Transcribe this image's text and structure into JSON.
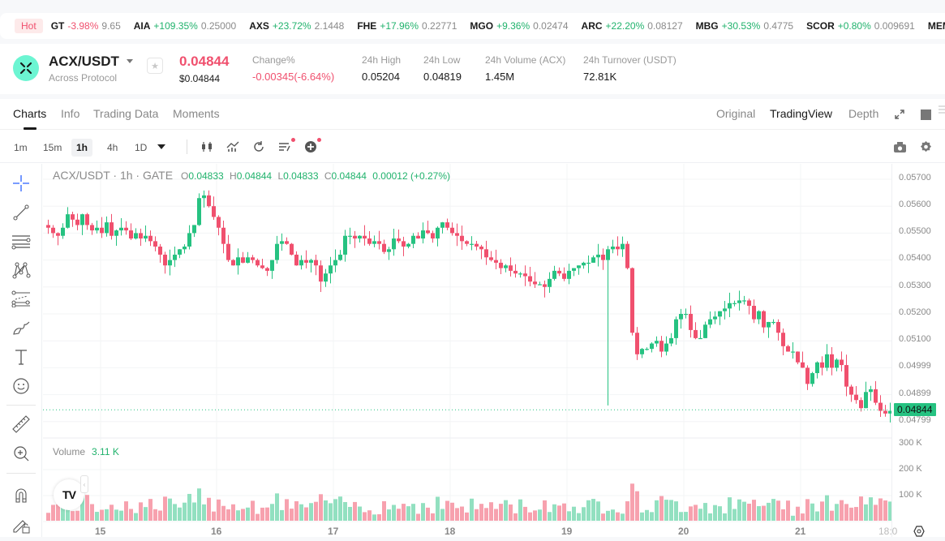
{
  "ticker": {
    "hot_label": "Hot",
    "items": [
      {
        "symbol": "GT",
        "change": "-3.98%",
        "dir": "dn",
        "price": "9.65"
      },
      {
        "symbol": "AIA",
        "change": "+109.35%",
        "dir": "up",
        "price": "0.25000"
      },
      {
        "symbol": "AXS",
        "change": "+23.72%",
        "dir": "up",
        "price": "2.1448"
      },
      {
        "symbol": "FHE",
        "change": "+17.96%",
        "dir": "up",
        "price": "0.22771"
      },
      {
        "symbol": "MGO",
        "change": "+9.36%",
        "dir": "up",
        "price": "0.02474"
      },
      {
        "symbol": "ARC",
        "change": "+22.20%",
        "dir": "up",
        "price": "0.08127"
      },
      {
        "symbol": "MBG",
        "change": "+30.53%",
        "dir": "up",
        "price": "0.4775"
      },
      {
        "symbol": "SCOR",
        "change": "+0.80%",
        "dir": "up",
        "price": "0.009691"
      },
      {
        "symbol": "MEME",
        "change": "",
        "dir": "up",
        "price": ""
      }
    ]
  },
  "header": {
    "pair": "ACX/USDT",
    "name": "Across Protocol",
    "price": "0.04844",
    "usd_price": "$0.04844",
    "stats": [
      {
        "label": "Change%",
        "value": "-0.00345(-6.64%)",
        "dir": "dn"
      },
      {
        "label": "24h High",
        "value": "0.05204",
        "dir": ""
      },
      {
        "label": "24h Low",
        "value": "0.04819",
        "dir": ""
      },
      {
        "label": "24h Volume (ACX)",
        "value": "1.45M",
        "dir": ""
      },
      {
        "label": "24h Turnover (USDT)",
        "value": "72.81K",
        "dir": ""
      }
    ]
  },
  "tabs": [
    {
      "label": "Charts",
      "active": true
    },
    {
      "label": "Info",
      "active": false
    },
    {
      "label": "Trading Data",
      "active": false
    },
    {
      "label": "Moments",
      "active": false
    }
  ],
  "view_tabs": [
    {
      "label": "Original",
      "active": false
    },
    {
      "label": "TradingView",
      "active": true
    },
    {
      "label": "Depth",
      "active": false
    }
  ],
  "intervals": [
    {
      "label": "1m",
      "active": false
    },
    {
      "label": "15m",
      "active": false
    },
    {
      "label": "1h",
      "active": true
    },
    {
      "label": "4h",
      "active": false
    },
    {
      "label": "1D",
      "active": false
    }
  ],
  "legend": {
    "title": "ACX/USDT · 1h · GATE",
    "o_key": "O",
    "o": "0.04833",
    "h_key": "H",
    "h": "0.04844",
    "l_key": "L",
    "l": "0.04833",
    "c_key": "C",
    "c": "0.04844",
    "change": "0.00012 (+0.27%)"
  },
  "volume_legend": {
    "label": "Volume",
    "value": "3.11 K"
  },
  "current_price_tag": "0.04844",
  "colors": {
    "up": "#26c281",
    "down": "#f0506e",
    "up_vol": "#92e0c0",
    "down_vol": "#f7a1ae",
    "accent": "#2962ff"
  },
  "chart_data": {
    "type": "candlestick",
    "title": "ACX/USDT · 1h · GATE",
    "y_ticks": [
      "0.05700",
      "0.05600",
      "0.05500",
      "0.05400",
      "0.05300",
      "0.05200",
      "0.05100",
      "0.04999",
      "0.04899",
      "0.04799"
    ],
    "volume_ticks": [
      "300 K",
      "200 K",
      "100 K"
    ],
    "x_ticks": [
      "15",
      "16",
      "17",
      "18",
      "19",
      "20",
      "21",
      "18:0"
    ],
    "last_price": 0.04844,
    "close_series": [
      0.0552,
      0.055,
      0.0549,
      0.0552,
      0.0557,
      0.0555,
      0.0553,
      0.0557,
      0.0553,
      0.0551,
      0.0552,
      0.055,
      0.0554,
      0.0549,
      0.0551,
      0.0552,
      0.0551,
      0.0548,
      0.055,
      0.0548,
      0.0549,
      0.0547,
      0.0545,
      0.0542,
      0.0538,
      0.054,
      0.0542,
      0.0544,
      0.0545,
      0.055,
      0.0553,
      0.0563,
      0.0564,
      0.056,
      0.0556,
      0.0552,
      0.0546,
      0.054,
      0.0538,
      0.0541,
      0.0539,
      0.0541,
      0.054,
      0.0538,
      0.0537,
      0.0536,
      0.054,
      0.0546,
      0.0547,
      0.0546,
      0.0542,
      0.0538,
      0.054,
      0.0539,
      0.054,
      0.0538,
      0.0532,
      0.0535,
      0.0538,
      0.054,
      0.0542,
      0.0549,
      0.0549,
      0.0548,
      0.0549,
      0.0548,
      0.0546,
      0.0547,
      0.0546,
      0.0543,
      0.0544,
      0.0548,
      0.0547,
      0.0545,
      0.0546,
      0.0549,
      0.0548,
      0.0551,
      0.055,
      0.0548,
      0.0552,
      0.0554,
      0.0552,
      0.055,
      0.0549,
      0.0547,
      0.0546,
      0.0546,
      0.0545,
      0.0544,
      0.0541,
      0.054,
      0.0539,
      0.0537,
      0.0538,
      0.0536,
      0.0535,
      0.0535,
      0.0534,
      0.0532,
      0.0531,
      0.0531,
      0.053,
      0.0533,
      0.0536,
      0.0535,
      0.0533,
      0.0536,
      0.0537,
      0.0538,
      0.0539,
      0.0539,
      0.0541,
      0.0542,
      0.054,
      0.0544,
      0.0545,
      0.0544,
      0.0546,
      0.0537,
      0.0513,
      0.0505,
      0.0507,
      0.0507,
      0.0509,
      0.051,
      0.0506,
      0.0509,
      0.0511,
      0.0518,
      0.052,
      0.052,
      0.0514,
      0.0511,
      0.0511,
      0.0516,
      0.0518,
      0.0519,
      0.0521,
      0.0522,
      0.0524,
      0.0524,
      0.0525,
      0.0525,
      0.0523,
      0.0518,
      0.0521,
      0.0515,
      0.0517,
      0.0517,
      0.0513,
      0.0508,
      0.0506,
      0.0506,
      0.0502,
      0.05,
      0.0494,
      0.0498,
      0.0502,
      0.05,
      0.0505,
      0.05,
      0.0503,
      0.0501,
      0.0493,
      0.049,
      0.0488,
      0.0485,
      0.0491,
      0.0492,
      0.0487,
      0.0484,
      0.0483,
      0.0484
    ]
  }
}
